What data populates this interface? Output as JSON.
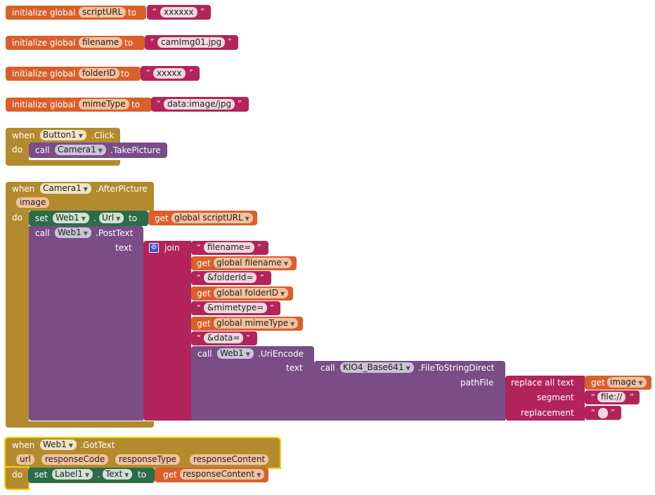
{
  "colors": {
    "orange": "#d95f2b",
    "magenta": "#b2245a",
    "gold": "#b38b2e",
    "purple": "#7a4d87",
    "green": "#2d6b4a",
    "highlight": "#f4d10f"
  },
  "globals": [
    {
      "prefix": "initialize global",
      "name": "scriptURL",
      "to": "to",
      "value": "xxxxxx"
    },
    {
      "prefix": "initialize global",
      "name": "filename",
      "to": "to",
      "value": "camImg01.jpg"
    },
    {
      "prefix": "initialize global",
      "name": "folderID",
      "to": "to",
      "value": "xxxxx"
    },
    {
      "prefix": "initialize global",
      "name": "mimeType",
      "to": "to",
      "value": "data:image/jpg"
    }
  ],
  "quote": "“",
  "quote_close": "”",
  "button_event": {
    "when": "when",
    "component": "Button1",
    "event": ".Click",
    "do": "do",
    "call": "call",
    "cam": "Camera1",
    "method": ".TakePicture"
  },
  "after_picture": {
    "when": "when",
    "component": "Camera1",
    "event": ".AfterPicture",
    "param": "image",
    "do": "do",
    "set": "set",
    "web": "Web1",
    "dot": ".",
    "prop": "Url",
    "to": "to",
    "get": "get",
    "get_scripturl": "global scriptURL",
    "call": "call",
    "post": ".PostText",
    "text_label": "text",
    "join": "join",
    "items": [
      {
        "type": "text",
        "value": "filename="
      },
      {
        "type": "get",
        "value": "global filename"
      },
      {
        "type": "text",
        "value": "&folderId="
      },
      {
        "type": "get",
        "value": "global folderID"
      },
      {
        "type": "text",
        "value": "&mimetype="
      },
      {
        "type": "get",
        "value": "global mimeType"
      },
      {
        "type": "text",
        "value": "&data="
      }
    ],
    "uriencode": ".UriEncode",
    "kio": "KIO4_Base641",
    "filetostring": ".FileToStringDirect",
    "pathfile": "pathFile",
    "replace": "replace all text",
    "get_image": "image",
    "segment": "segment",
    "segment_value": "file://",
    "replacement": "replacement"
  },
  "got_text": {
    "when": "when",
    "component": "Web1",
    "event": ".GotText",
    "params": [
      "url",
      "responseCode",
      "responseType",
      "responseContent"
    ],
    "do": "do",
    "set": "set",
    "label": "Label1",
    "dot": ".",
    "prop": "Text",
    "to": "to",
    "get": "get",
    "value": "responseContent"
  }
}
